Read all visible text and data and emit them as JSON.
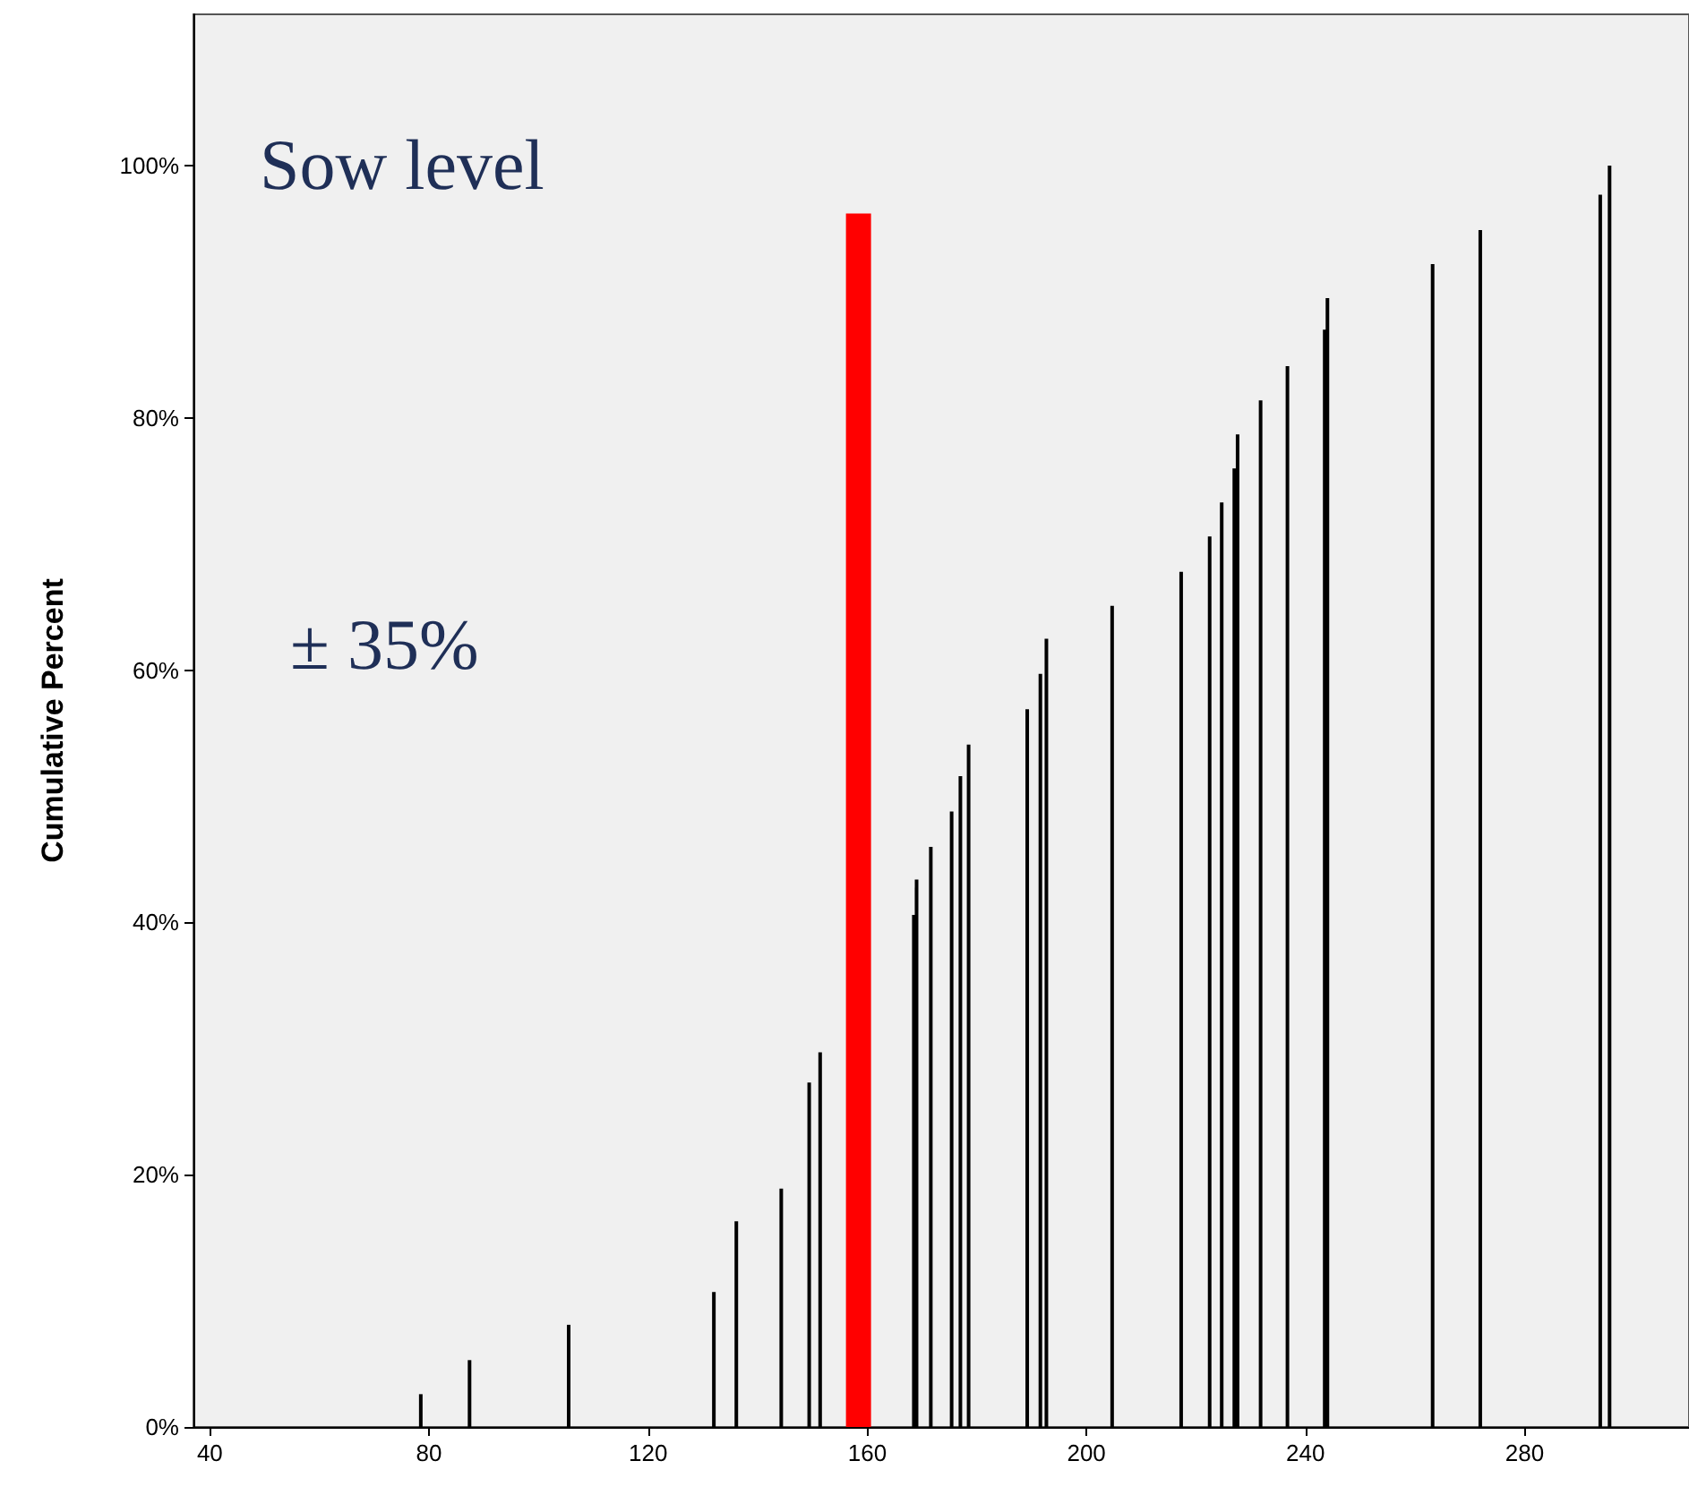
{
  "chart_data": {
    "type": "bar",
    "ylabel": "Cumulative Percent",
    "annotations": [
      "Sow level",
      "± 35%"
    ],
    "xlim": [
      37,
      310
    ],
    "xticks": [
      40,
      80,
      120,
      160,
      200,
      240,
      280
    ],
    "ylim": [
      0,
      112
    ],
    "yticks": [
      {
        "value": 0,
        "label": "0%"
      },
      {
        "value": 20,
        "label": "20%"
      },
      {
        "value": 40,
        "label": "40%"
      },
      {
        "value": 60,
        "label": "60%"
      },
      {
        "value": 80,
        "label": "80%"
      },
      {
        "value": 100,
        "label": "100%"
      }
    ],
    "grid": false,
    "series": [
      {
        "color": "#000000",
        "x": [
          78.5,
          87.4,
          105.5,
          132,
          136.1,
          144.3,
          149.4,
          151.4,
          168.5,
          169,
          171.6,
          175.4,
          177,
          178.5,
          189.2,
          191.6,
          192.7,
          204.7,
          217.3,
          222.5,
          224.7,
          227,
          227.6,
          231.8,
          236.7,
          243.5,
          244,
          263.2,
          271.9,
          293.8,
          295.5
        ],
        "values": [
          2.6,
          5.3,
          8.1,
          10.7,
          16.3,
          18.9,
          27.3,
          29.7,
          40.6,
          43.4,
          46,
          48.8,
          51.6,
          54.1,
          56.9,
          59.7,
          62.5,
          65.1,
          67.8,
          70.6,
          73.3,
          76,
          78.7,
          81.4,
          84.1,
          87,
          89.5,
          92.2,
          94.9,
          97.7,
          100
        ]
      },
      {
        "color": "#ff0000",
        "x": [
          158.4
        ],
        "values": [
          96.2
        ]
      }
    ]
  }
}
